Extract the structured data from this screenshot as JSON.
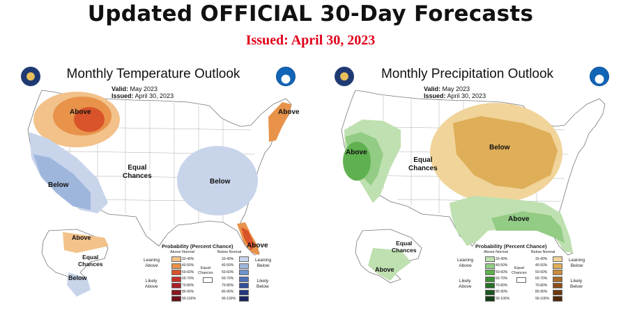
{
  "header": {
    "title": "Updated OFFICIAL 30-Day Forecasts",
    "issued": "Issued: April 30, 2023",
    "issued_color": "#e0001a"
  },
  "temperature": {
    "title": "Monthly Temperature Outlook",
    "valid_label": "Valid:",
    "valid_value": "May 2023",
    "issued_label": "Issued:",
    "issued_value": "April 30, 2023",
    "labels": {
      "above_nw": "Above",
      "above_ne": "Above",
      "above_fl": "Above",
      "above_ak": "Above",
      "below_west": "Below",
      "below_east": "Below",
      "below_ak": "Below",
      "equal": "Equal\nChances",
      "equal_ak": "Equal\nChances"
    },
    "legend": {
      "title": "Probability (Percent Chance)",
      "left_header": "Above Normal",
      "right_header": "Below Normal",
      "leaning_left": "Leaning\nAbove",
      "likely_left": "Likely\nAbove",
      "leaning_right": "Leaning\nBelow",
      "likely_right": "Likely\nBelow",
      "equal": "Equal\nChances",
      "ranges": [
        "33-40%",
        "40-50%",
        "50-60%",
        "60-70%",
        "70-80%",
        "80-90%",
        "90-100%"
      ],
      "left_colors": [
        "#f2c28a",
        "#e8924a",
        "#d9542a",
        "#c4302a",
        "#a8202a",
        "#8a1820",
        "#6a1018"
      ],
      "right_colors": [
        "#c8d4ea",
        "#9fb6dc",
        "#6e93cc",
        "#4c6fb5",
        "#35509a",
        "#25387e",
        "#1a2460"
      ]
    }
  },
  "precipitation": {
    "title": "Monthly Precipitation Outlook",
    "valid_label": "Valid:",
    "valid_value": "May 2023",
    "issued_label": "Issued:",
    "issued_value": "April 30, 2023",
    "labels": {
      "above_west": "Above",
      "above_se": "Above",
      "above_ak": "Above",
      "below_mw": "Below",
      "equal": "Equal\nChances",
      "equal_ak": "Equal\nChances"
    },
    "legend": {
      "title": "Probability (Percent Chance)",
      "left_header": "Above Normal",
      "right_header": "Below Normal",
      "leaning_left": "Leaning\nAbove",
      "likely_left": "Likely\nAbove",
      "leaning_right": "Leaning\nBelow",
      "likely_right": "Likely\nBelow",
      "equal": "Equal\nChances",
      "ranges": [
        "33-40%",
        "40-50%",
        "50-60%",
        "60-70%",
        "70-80%",
        "80-90%",
        "90-100%"
      ],
      "left_colors": [
        "#bfe0b0",
        "#93cc85",
        "#5fb04f",
        "#3c8f36",
        "#2a7028",
        "#1d5620",
        "#143c16"
      ],
      "right_colors": [
        "#f0d49a",
        "#dfae58",
        "#c98c3a",
        "#a96a28",
        "#8a4e1a",
        "#6e3a12",
        "#4f280a"
      ]
    }
  }
}
